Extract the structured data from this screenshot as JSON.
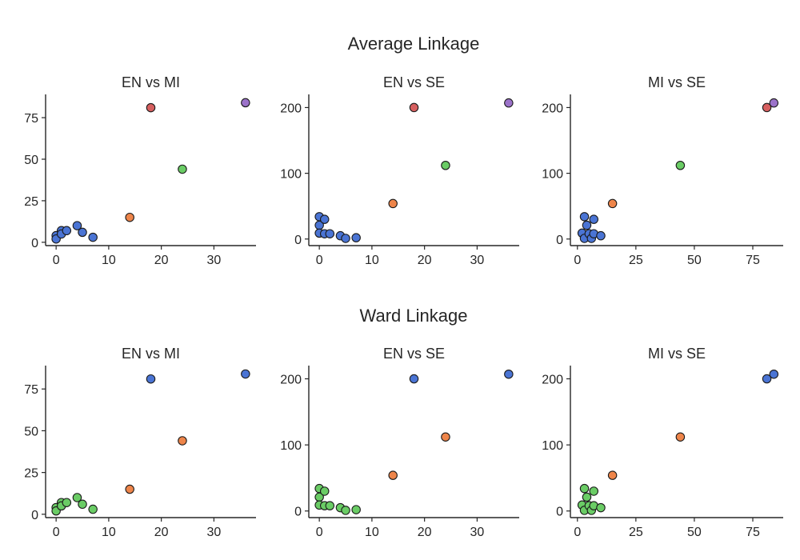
{
  "colors": {
    "blue": "#4a74d4",
    "red": "#d65f5f",
    "purple": "#9b72c9",
    "green": "#6acc65",
    "orange": "#ee854a",
    "edge": "#1a1a1a",
    "text": "#262626"
  },
  "chart_data": [
    {
      "title": "Average Linkage",
      "panels": [
        {
          "type": "scatter",
          "title": "EN vs MI",
          "xlim": [
            -2,
            38
          ],
          "ylim": [
            -2,
            89
          ],
          "xticks": [
            0,
            10,
            20,
            30
          ],
          "yticks": [
            0,
            25,
            50,
            75
          ],
          "points": [
            {
              "x": 0,
              "y": 4,
              "c": "blue"
            },
            {
              "x": 0,
              "y": 2,
              "c": "blue"
            },
            {
              "x": 1,
              "y": 7,
              "c": "blue"
            },
            {
              "x": 1,
              "y": 5,
              "c": "blue"
            },
            {
              "x": 2,
              "y": 7,
              "c": "blue"
            },
            {
              "x": 4,
              "y": 10,
              "c": "blue"
            },
            {
              "x": 5,
              "y": 6,
              "c": "blue"
            },
            {
              "x": 7,
              "y": 3,
              "c": "blue"
            },
            {
              "x": 14,
              "y": 15,
              "c": "orange"
            },
            {
              "x": 18,
              "y": 81,
              "c": "red"
            },
            {
              "x": 24,
              "y": 44,
              "c": "green"
            },
            {
              "x": 36,
              "y": 84,
              "c": "purple"
            }
          ]
        },
        {
          "type": "scatter",
          "title": "EN vs SE",
          "xlim": [
            -2,
            38
          ],
          "ylim": [
            -10,
            220
          ],
          "xticks": [
            0,
            10,
            20,
            30
          ],
          "yticks": [
            0,
            100,
            200
          ],
          "points": [
            {
              "x": 0,
              "y": 34,
              "c": "blue"
            },
            {
              "x": 0,
              "y": 21,
              "c": "blue"
            },
            {
              "x": 0,
              "y": 9,
              "c": "blue"
            },
            {
              "x": 1,
              "y": 30,
              "c": "blue"
            },
            {
              "x": 1,
              "y": 8,
              "c": "blue"
            },
            {
              "x": 2,
              "y": 8,
              "c": "blue"
            },
            {
              "x": 4,
              "y": 5,
              "c": "blue"
            },
            {
              "x": 5,
              "y": 1,
              "c": "blue"
            },
            {
              "x": 7,
              "y": 2,
              "c": "blue"
            },
            {
              "x": 14,
              "y": 54,
              "c": "orange"
            },
            {
              "x": 18,
              "y": 200,
              "c": "red"
            },
            {
              "x": 24,
              "y": 112,
              "c": "green"
            },
            {
              "x": 36,
              "y": 207,
              "c": "purple"
            }
          ]
        },
        {
          "type": "scatter",
          "title": "MI vs SE",
          "xlim": [
            -3,
            88
          ],
          "ylim": [
            -10,
            220
          ],
          "xticks": [
            0,
            25,
            50,
            75
          ],
          "yticks": [
            0,
            100,
            200
          ],
          "points": [
            {
              "x": 2,
              "y": 9,
              "c": "blue"
            },
            {
              "x": 3,
              "y": 34,
              "c": "blue"
            },
            {
              "x": 4,
              "y": 21,
              "c": "blue"
            },
            {
              "x": 3,
              "y": 1,
              "c": "blue"
            },
            {
              "x": 5,
              "y": 8,
              "c": "blue"
            },
            {
              "x": 6,
              "y": 1,
              "c": "blue"
            },
            {
              "x": 7,
              "y": 8,
              "c": "blue"
            },
            {
              "x": 7,
              "y": 30,
              "c": "blue"
            },
            {
              "x": 10,
              "y": 5,
              "c": "blue"
            },
            {
              "x": 15,
              "y": 54,
              "c": "orange"
            },
            {
              "x": 44,
              "y": 112,
              "c": "green"
            },
            {
              "x": 81,
              "y": 200,
              "c": "red"
            },
            {
              "x": 84,
              "y": 207,
              "c": "purple"
            }
          ]
        }
      ]
    },
    {
      "title": "Ward Linkage",
      "panels": [
        {
          "type": "scatter",
          "title": "EN vs MI",
          "xlim": [
            -2,
            38
          ],
          "ylim": [
            -2,
            89
          ],
          "xticks": [
            0,
            10,
            20,
            30
          ],
          "yticks": [
            0,
            25,
            50,
            75
          ],
          "points": [
            {
              "x": 0,
              "y": 4,
              "c": "green"
            },
            {
              "x": 0,
              "y": 2,
              "c": "green"
            },
            {
              "x": 1,
              "y": 7,
              "c": "green"
            },
            {
              "x": 1,
              "y": 5,
              "c": "green"
            },
            {
              "x": 2,
              "y": 7,
              "c": "green"
            },
            {
              "x": 4,
              "y": 10,
              "c": "green"
            },
            {
              "x": 5,
              "y": 6,
              "c": "green"
            },
            {
              "x": 7,
              "y": 3,
              "c": "green"
            },
            {
              "x": 14,
              "y": 15,
              "c": "orange"
            },
            {
              "x": 18,
              "y": 81,
              "c": "blue"
            },
            {
              "x": 24,
              "y": 44,
              "c": "orange"
            },
            {
              "x": 36,
              "y": 84,
              "c": "blue"
            }
          ]
        },
        {
          "type": "scatter",
          "title": "EN vs SE",
          "xlim": [
            -2,
            38
          ],
          "ylim": [
            -10,
            220
          ],
          "xticks": [
            0,
            10,
            20,
            30
          ],
          "yticks": [
            0,
            100,
            200
          ],
          "points": [
            {
              "x": 0,
              "y": 34,
              "c": "green"
            },
            {
              "x": 0,
              "y": 21,
              "c": "green"
            },
            {
              "x": 0,
              "y": 9,
              "c": "green"
            },
            {
              "x": 1,
              "y": 30,
              "c": "green"
            },
            {
              "x": 1,
              "y": 8,
              "c": "green"
            },
            {
              "x": 2,
              "y": 8,
              "c": "green"
            },
            {
              "x": 4,
              "y": 5,
              "c": "green"
            },
            {
              "x": 5,
              "y": 1,
              "c": "green"
            },
            {
              "x": 7,
              "y": 2,
              "c": "green"
            },
            {
              "x": 14,
              "y": 54,
              "c": "orange"
            },
            {
              "x": 18,
              "y": 200,
              "c": "blue"
            },
            {
              "x": 24,
              "y": 112,
              "c": "orange"
            },
            {
              "x": 36,
              "y": 207,
              "c": "blue"
            }
          ]
        },
        {
          "type": "scatter",
          "title": "MI vs SE",
          "xlim": [
            -3,
            88
          ],
          "ylim": [
            -10,
            220
          ],
          "xticks": [
            0,
            25,
            50,
            75
          ],
          "yticks": [
            0,
            100,
            200
          ],
          "points": [
            {
              "x": 2,
              "y": 9,
              "c": "green"
            },
            {
              "x": 3,
              "y": 34,
              "c": "green"
            },
            {
              "x": 4,
              "y": 21,
              "c": "green"
            },
            {
              "x": 3,
              "y": 1,
              "c": "green"
            },
            {
              "x": 5,
              "y": 8,
              "c": "green"
            },
            {
              "x": 6,
              "y": 1,
              "c": "green"
            },
            {
              "x": 7,
              "y": 8,
              "c": "green"
            },
            {
              "x": 7,
              "y": 30,
              "c": "green"
            },
            {
              "x": 10,
              "y": 5,
              "c": "green"
            },
            {
              "x": 15,
              "y": 54,
              "c": "orange"
            },
            {
              "x": 44,
              "y": 112,
              "c": "orange"
            },
            {
              "x": 81,
              "y": 200,
              "c": "blue"
            },
            {
              "x": 84,
              "y": 207,
              "c": "blue"
            }
          ]
        }
      ]
    }
  ]
}
